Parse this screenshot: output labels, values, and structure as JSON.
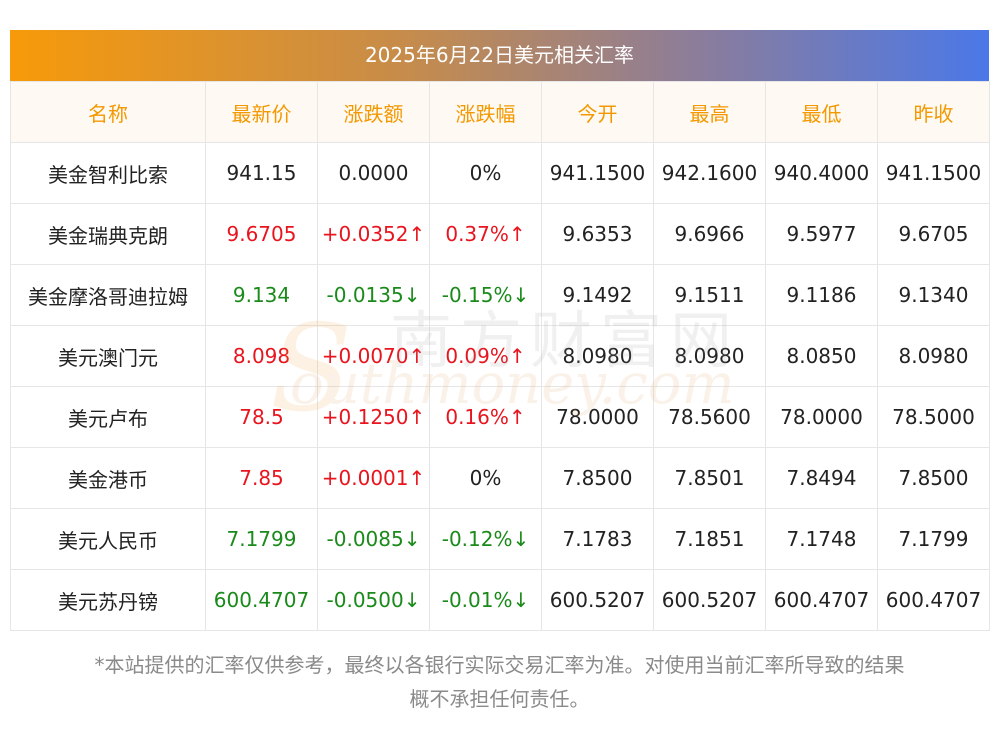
{
  "title": "2025年6月22日美元相关汇率",
  "headers": [
    "名称",
    "最新价",
    "涨跌额",
    "涨跌幅",
    "今开",
    "最高",
    "最低",
    "昨收"
  ],
  "rows": [
    {
      "name": "美金智利比索",
      "latest": "941.15",
      "change": "0.0000",
      "pct": "0%",
      "open": "941.1500",
      "high": "942.1600",
      "low": "940.4000",
      "prev": "941.1500",
      "trend": "flat"
    },
    {
      "name": "美金瑞典克朗",
      "latest": "9.6705",
      "change": "+0.0352↑",
      "pct": "0.37%↑",
      "open": "9.6353",
      "high": "9.6966",
      "low": "9.5977",
      "prev": "9.6705",
      "trend": "up"
    },
    {
      "name": "美金摩洛哥迪拉姆",
      "latest": "9.134",
      "change": "-0.0135↓",
      "pct": "-0.15%↓",
      "open": "9.1492",
      "high": "9.1511",
      "low": "9.1186",
      "prev": "9.1340",
      "trend": "down"
    },
    {
      "name": "美元澳门元",
      "latest": "8.098",
      "change": "+0.0070↑",
      "pct": "0.09%↑",
      "open": "8.0980",
      "high": "8.0980",
      "low": "8.0850",
      "prev": "8.0980",
      "trend": "up"
    },
    {
      "name": "美元卢布",
      "latest": "78.5",
      "change": "+0.1250↑",
      "pct": "0.16%↑",
      "open": "78.0000",
      "high": "78.5600",
      "low": "78.0000",
      "prev": "78.5000",
      "trend": "up"
    },
    {
      "name": "美金港币",
      "latest": "7.85",
      "change": "+0.0001↑",
      "pct": "0%",
      "open": "7.8500",
      "high": "7.8501",
      "low": "7.8494",
      "prev": "7.8500",
      "trend": "up"
    },
    {
      "name": "美元人民币",
      "latest": "7.1799",
      "change": "-0.0085↓",
      "pct": "-0.12%↓",
      "open": "7.1783",
      "high": "7.1851",
      "low": "7.1748",
      "prev": "7.1799",
      "trend": "down"
    },
    {
      "name": "美元苏丹镑",
      "latest": "600.4707",
      "change": "-0.0500↓",
      "pct": "-0.01%↓",
      "open": "600.5207",
      "high": "600.5207",
      "low": "600.4707",
      "prev": "600.4707",
      "trend": "down"
    }
  ],
  "note_line1": "*本站提供的汇率仅供参考，最终以各银行实际交易汇率为准。对使用当前汇率所导致的结果",
  "note_line2": "概不承担任何责任。",
  "watermark": {
    "cn": "南方财富网",
    "en": "outhmoney.com",
    "s": "S"
  },
  "colors": {
    "up": "#e8141e",
    "down": "#1a8a1a",
    "header_text": "#f39800",
    "title_left": "#f79a0a",
    "title_right": "#4b78e8"
  }
}
